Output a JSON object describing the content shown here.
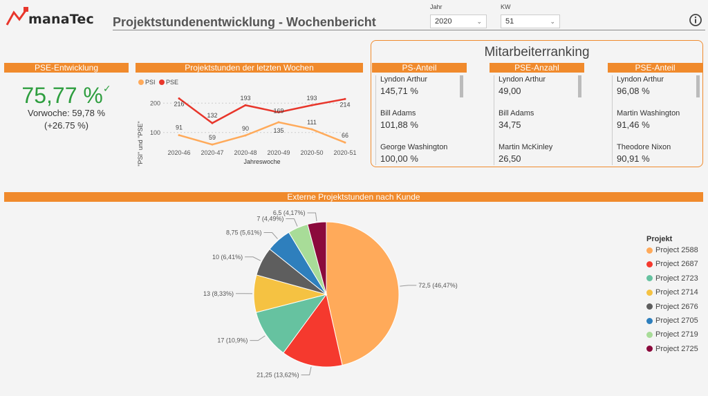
{
  "header": {
    "logo_text": "manaTec",
    "title": "Projektstundenentwicklung - Wochenbericht",
    "year_label": "Jahr",
    "year_value": "2020",
    "week_label": "KW",
    "week_value": "51"
  },
  "kpi": {
    "title": "PSE-Entwicklung",
    "value": "75,77 %",
    "check": "✓",
    "previous": "Vorwoche: 59,78 %",
    "delta": "(+26.75 %)"
  },
  "line_chart": {
    "title": "Projektstunden der letzten Wochen",
    "ylabel": "\"PSI\" und \"PSE\"",
    "xlabel": "Jahreswoche",
    "series_psi": {
      "name": "PSI",
      "color": "#ffaa5a"
    },
    "series_pse": {
      "name": "PSE",
      "color": "#e8362b"
    }
  },
  "ranking": {
    "title": "Mitarbeiterranking",
    "columns": [
      {
        "header": "PS-Anteil",
        "items": [
          {
            "name": "Lyndon Arthur",
            "value": "145,71 %"
          },
          {
            "name": "Bill Adams",
            "value": "101,88 %"
          },
          {
            "name": "George Washington",
            "value": "100,00 %"
          }
        ]
      },
      {
        "header": "PSE-Anzahl",
        "items": [
          {
            "name": "Lyndon Arthur",
            "value": "49,00"
          },
          {
            "name": "Bill Adams",
            "value": "34,75"
          },
          {
            "name": "Martin McKinley",
            "value": "26,50"
          }
        ]
      },
      {
        "header": "PSE-Anteil",
        "items": [
          {
            "name": "Lyndon Arthur",
            "value": "96,08 %"
          },
          {
            "name": "Martin Washington",
            "value": "91,46 %"
          },
          {
            "name": "Theodore Nixon",
            "value": "90,91 %"
          }
        ]
      }
    ]
  },
  "pie_section": {
    "title": "Externe Projektstunden nach Kunde",
    "legend_title": "Projekt"
  },
  "chart_data": [
    {
      "type": "line",
      "title": "Projektstunden der letzten Wochen",
      "xlabel": "Jahreswoche",
      "ylabel": "\"PSI\" und \"PSE\"",
      "x": [
        "2020-46",
        "2020-47",
        "2020-48",
        "2020-49",
        "2020-50",
        "2020-51"
      ],
      "yticks": [
        100,
        200
      ],
      "ylim": [
        50,
        250
      ],
      "legend": "top-left",
      "series": [
        {
          "name": "PSI",
          "color": "#ffaa5a",
          "values": [
            91,
            59,
            90,
            135,
            111,
            66
          ],
          "labels": [
            "91",
            "59",
            "90",
            "135",
            "111",
            "66"
          ]
        },
        {
          "name": "PSE",
          "color": "#e8362b",
          "values": [
            216,
            132,
            193,
            169,
            193,
            214
          ],
          "labels": [
            "216",
            "132",
            "193",
            "169",
            "193",
            "214"
          ]
        }
      ]
    },
    {
      "type": "pie",
      "title": "Externe Projektstunden nach Kunde",
      "legend": "right",
      "legend_title": "Projekt",
      "slices": [
        {
          "name": "Project 2588",
          "value": 72.5,
          "label": "72,5 (46,47%)",
          "color": "#ffaa5a"
        },
        {
          "name": "Project 2687",
          "value": 21.25,
          "label": "21,25 (13,62%)",
          "color": "#f5392e"
        },
        {
          "name": "Project 2723",
          "value": 17,
          "label": "17 (10,9%)",
          "color": "#66c2a0"
        },
        {
          "name": "Project 2714",
          "value": 13,
          "label": "13 (8,33%)",
          "color": "#f5c242"
        },
        {
          "name": "Project 2676",
          "value": 10,
          "label": "10 (6,41%)",
          "color": "#5e5e5e"
        },
        {
          "name": "Project 2705",
          "value": 8.75,
          "label": "8,75 (5,61%)",
          "color": "#2e7fbd"
        },
        {
          "name": "Project 2719",
          "value": 7,
          "label": "7 (4,49%)",
          "color": "#a8dc98"
        },
        {
          "name": "Project 2725",
          "value": 6.5,
          "label": "6,5 (4,17%)",
          "color": "#8b0a3c"
        }
      ]
    }
  ]
}
